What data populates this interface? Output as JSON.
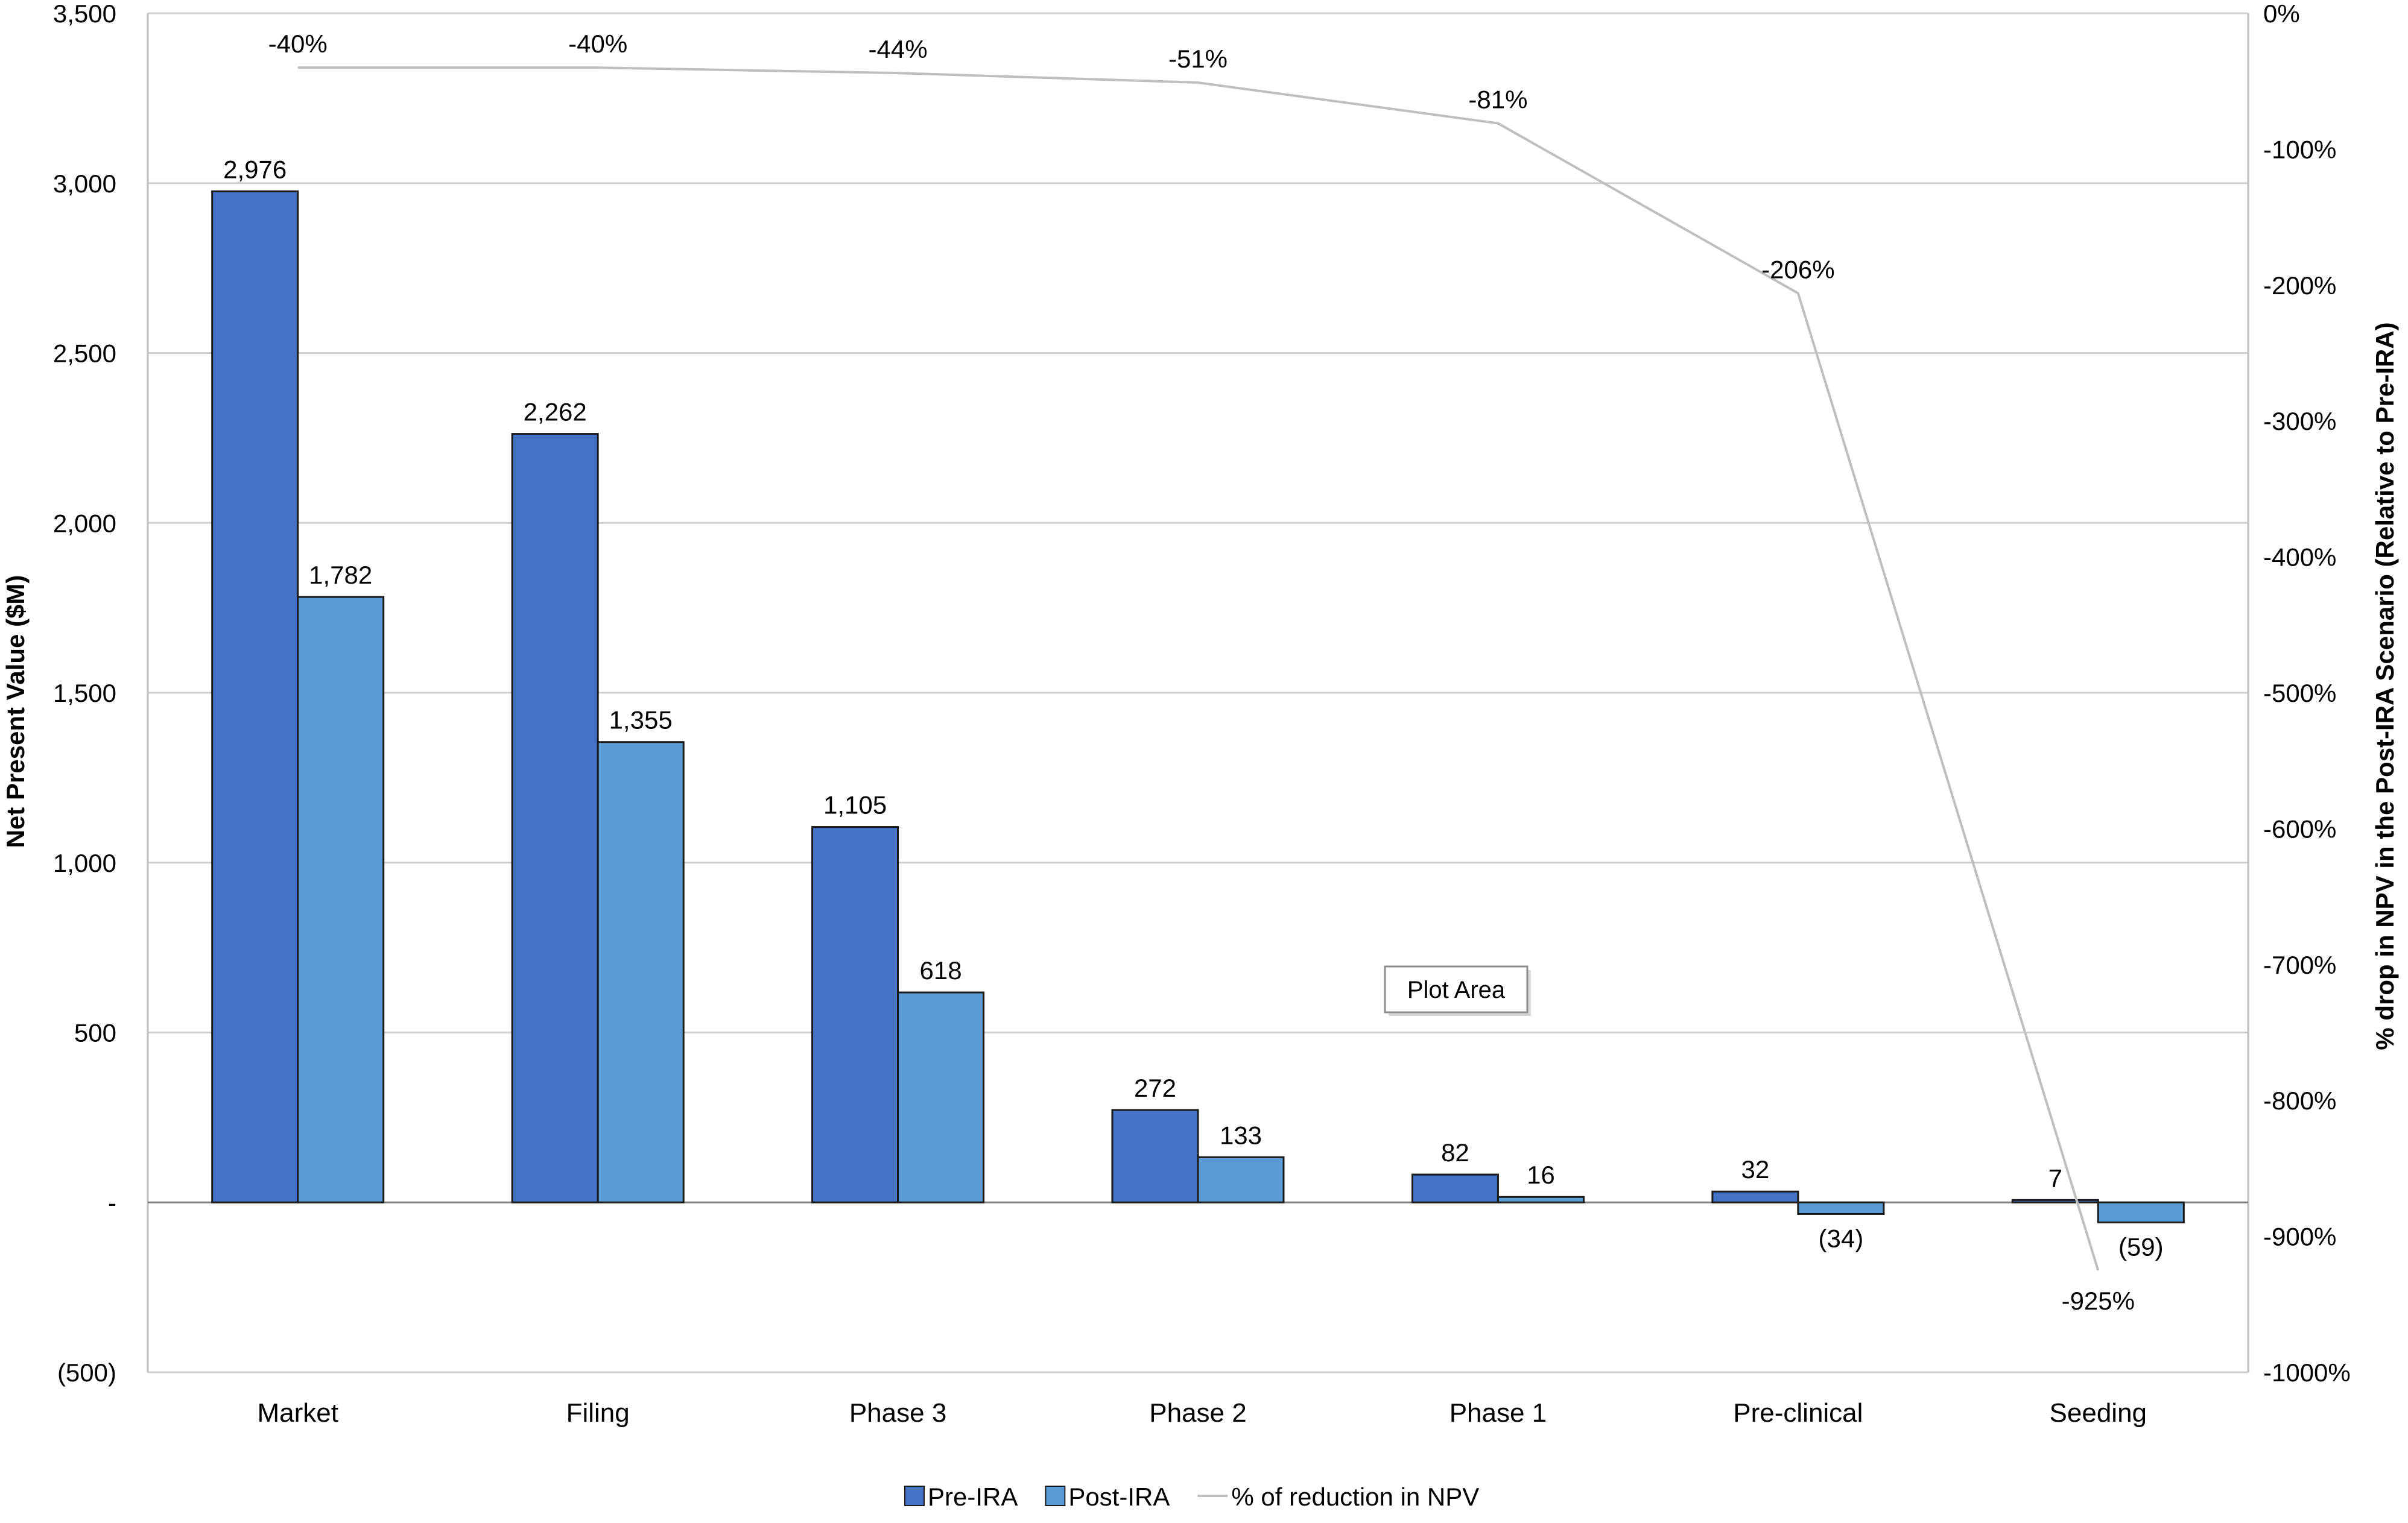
{
  "chart_data": {
    "type": "bar",
    "categories": [
      "Market",
      "Filing",
      "Phase 3",
      "Phase 2",
      "Phase 1",
      "Pre-clinical",
      "Seeding"
    ],
    "series": [
      {
        "name": "Pre-IRA",
        "kind": "bar",
        "axis": "left",
        "color": "#4472C4",
        "values": [
          2976,
          2262,
          1105,
          272,
          82,
          32,
          7
        ],
        "labels": [
          "2,976",
          "2,262",
          "1,105",
          "272",
          "82",
          "32",
          "7"
        ]
      },
      {
        "name": "Post-IRA",
        "kind": "bar",
        "axis": "left",
        "color": "#5B9BD5",
        "values": [
          1782,
          1355,
          618,
          133,
          16,
          -34,
          -59
        ],
        "labels": [
          "1,782",
          "1,355",
          "618",
          "133",
          "16",
          "(34)",
          "(59)"
        ]
      },
      {
        "name": "% of reduction in NPV",
        "kind": "line",
        "axis": "right",
        "color": "#BFBFBF",
        "values": [
          -40,
          -40,
          -44,
          -51,
          -81,
          -206,
          -925
        ],
        "labels": [
          "-40%",
          "-40%",
          "-44%",
          "-51%",
          "-81%",
          "-206%",
          "-925%"
        ]
      }
    ],
    "ylabel": "Net Present Value ($M)",
    "y2label": "% drop in NPV in the Post-IRA Scenario (Relative to Pre-IRA)",
    "ylim": [
      -500,
      3500
    ],
    "y2lim": [
      -1000,
      0
    ],
    "yticks": [
      {
        "value": 3500,
        "label": "3,500"
      },
      {
        "value": 3000,
        "label": "3,000"
      },
      {
        "value": 2500,
        "label": "2,500"
      },
      {
        "value": 2000,
        "label": "2,000"
      },
      {
        "value": 1500,
        "label": "1,500"
      },
      {
        "value": 1000,
        "label": "1,000"
      },
      {
        "value": 500,
        "label": "500"
      },
      {
        "value": 0,
        "label": "-"
      },
      {
        "value": -500,
        "label": "(500)"
      }
    ],
    "y2ticks": [
      {
        "value": 0,
        "label": "0%"
      },
      {
        "value": -100,
        "label": "-100%"
      },
      {
        "value": -200,
        "label": "-200%"
      },
      {
        "value": -300,
        "label": "-300%"
      },
      {
        "value": -400,
        "label": "-400%"
      },
      {
        "value": -500,
        "label": "-500%"
      },
      {
        "value": -600,
        "label": "-600%"
      },
      {
        "value": -700,
        "label": "-700%"
      },
      {
        "value": -800,
        "label": "-800%"
      },
      {
        "value": -900,
        "label": "-900%"
      },
      {
        "value": -1000,
        "label": "-1000%"
      }
    ],
    "grid": true,
    "legend_position": "bottom",
    "annotation": "Plot Area"
  }
}
